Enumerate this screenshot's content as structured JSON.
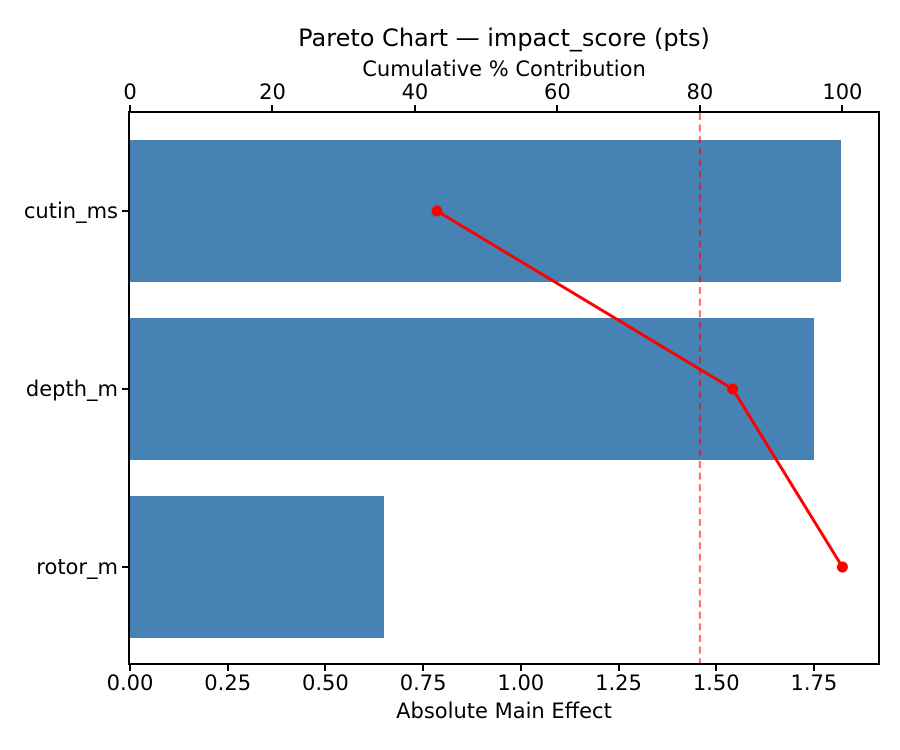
{
  "chart_data": {
    "type": "pareto_barh_line",
    "title": "Pareto Chart — impact_score (pts)",
    "categories": [
      "cutin_ms",
      "depth_m",
      "rotor_m"
    ],
    "bar_values": [
      1.82,
      1.75,
      0.65
    ],
    "bar_series_name": "Absolute Main Effect",
    "line_series_name": "Cumulative % Contribution",
    "cumulative_pct": [
      43.1,
      84.6,
      100.0
    ],
    "threshold_pct": 80,
    "top_axis": {
      "label": "Cumulative % Contribution",
      "ticks": [
        0,
        20,
        40,
        60,
        80,
        100
      ],
      "min": 0,
      "max": 105
    },
    "bottom_axis": {
      "label": "Absolute Main Effect",
      "ticks": [
        0,
        0.25,
        0.5,
        0.75,
        1.0,
        1.25,
        1.5,
        1.75
      ],
      "tick_labels": [
        "0.00",
        "0.25",
        "0.50",
        "0.75",
        "1.00",
        "1.25",
        "1.50",
        "1.75"
      ],
      "min": 0,
      "max": 1.914
    },
    "grid": false,
    "legend": "none",
    "colors": {
      "bar": "#4682b4",
      "line": "#ff0000",
      "marker": "#ff0000",
      "threshold_line": "rgba(255,0,0,0.55)",
      "text": "#000000",
      "spine": "#000000",
      "background": "#ffffff"
    }
  }
}
